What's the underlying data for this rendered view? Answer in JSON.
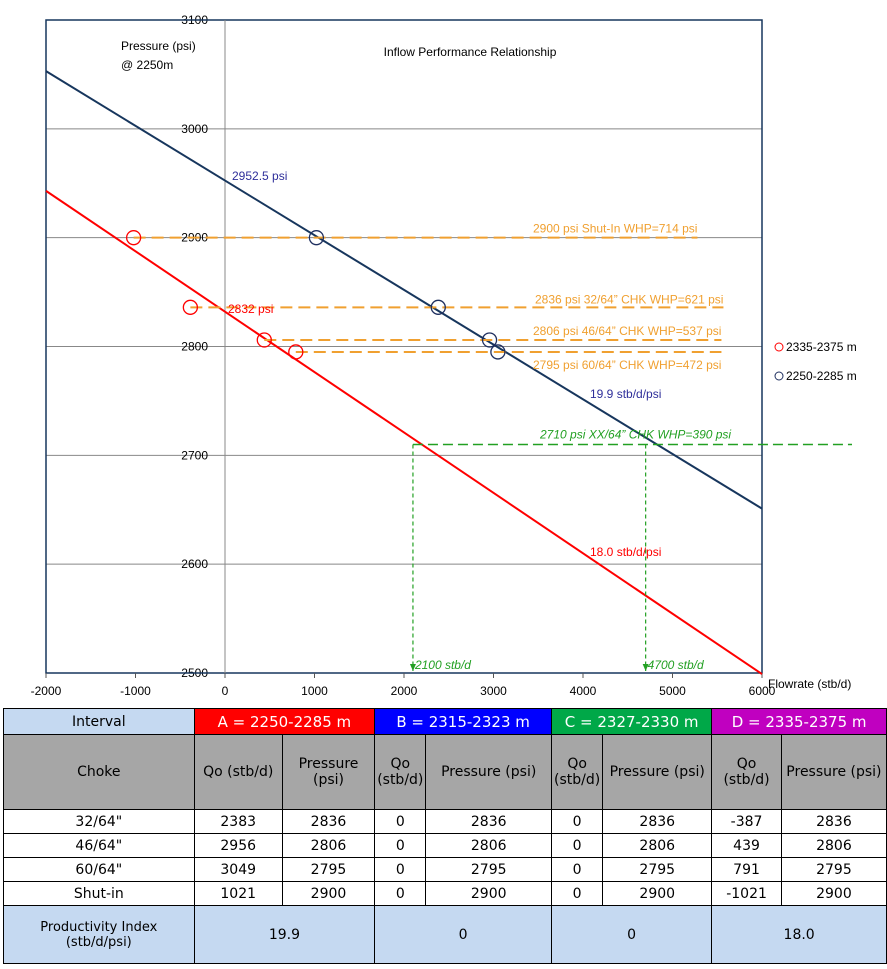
{
  "chart_data": {
    "type": "scatter",
    "title": "Inflow Performance Relationship",
    "ylabel": [
      "Pressure (psi)",
      "@ 2250m"
    ],
    "xlabel": "Flowrate (stb/d)",
    "xlim": [
      -2000,
      6000
    ],
    "xticks": [
      -2000,
      -1000,
      0,
      1000,
      2000,
      3000,
      4000,
      5000,
      6000
    ],
    "ylim": [
      2500,
      3100
    ],
    "yticks": [
      2500,
      2600,
      2700,
      2800,
      2900,
      3000,
      3100
    ],
    "grid": true,
    "series": [
      {
        "name": "2335-2375 m",
        "color": "#ff0000",
        "x": [
          -1021,
          -387,
          439,
          791
        ],
        "values": [
          2900,
          2836,
          2806,
          2795
        ]
      },
      {
        "name": "2250-2285 m",
        "color": "#1f2f5f",
        "x": [
          1021,
          2383,
          2956,
          3049
        ],
        "values": [
          2900,
          2836,
          2806,
          2795
        ]
      }
    ],
    "fit_lines": [
      {
        "color": "#17365d",
        "x": [
          -2000,
          6000
        ],
        "values": [
          3053,
          2651
        ],
        "intercept_label": "2952.5 psi",
        "slope_label": "19.9 stb/d/psi",
        "label_color": "#2e2e9a"
      },
      {
        "color": "#ff0000",
        "x": [
          -2000,
          6000
        ],
        "values": [
          2943,
          2499
        ],
        "intercept_label": "2832 psi",
        "slope_label": "18.0 stb/d/psi",
        "label_color": "#ff0000"
      }
    ],
    "annotations": [
      {
        "text": "2900 psi Shut-In WHP=714 psi",
        "y": 2900,
        "from_x": -1021
      },
      {
        "text": "2836 psi 32/64” CHK WHP=621 psi",
        "y": 2836,
        "from_x": -387
      },
      {
        "text": "2806 psi 46/64” CHK WHP=537 psi",
        "y": 2806,
        "from_x": 439
      },
      {
        "text": "2795 psi 60/64” CHK WHP=472 psi",
        "y": 2795,
        "from_x": 791
      }
    ],
    "annotation_color": "#f0a030",
    "target": {
      "text": "2710 psi XX/64” CHK WHP=390 psi",
      "y": 2710,
      "color": "#22a022",
      "drops": [
        {
          "x": 2100,
          "label": "2100 stb/d"
        },
        {
          "x": 4700,
          "label": "4700 stb/d"
        }
      ]
    }
  },
  "table": {
    "interval_label": "Interval",
    "intervals": [
      {
        "name": "A = 2250-2285 m",
        "color": "#ff0000"
      },
      {
        "name": "B = 2315-2323 m",
        "color": "#0000ff"
      },
      {
        "name": "C = 2327-2330 m",
        "color": "#00a848"
      },
      {
        "name": "D = 2335-2375 m",
        "color": "#c000c0"
      }
    ],
    "choke_label": "Choke",
    "columns": [
      "Qo (stb/d)",
      "Pressure (psi)"
    ],
    "rows": [
      [
        "32/64\"",
        2383,
        2836,
        0,
        2836,
        0,
        2836,
        -387,
        2836
      ],
      [
        "46/64\"",
        2956,
        2806,
        0,
        2806,
        0,
        2806,
        439,
        2806
      ],
      [
        "60/64\"",
        3049,
        2795,
        0,
        2795,
        0,
        2795,
        791,
        2795
      ],
      [
        "Shut-in",
        1021,
        2900,
        0,
        2900,
        0,
        2900,
        -1021,
        2900
      ]
    ],
    "pi_label": "Productivity Index (stb/d/psi)",
    "pi": [
      "19.9",
      "0",
      "0",
      "18.0"
    ]
  }
}
